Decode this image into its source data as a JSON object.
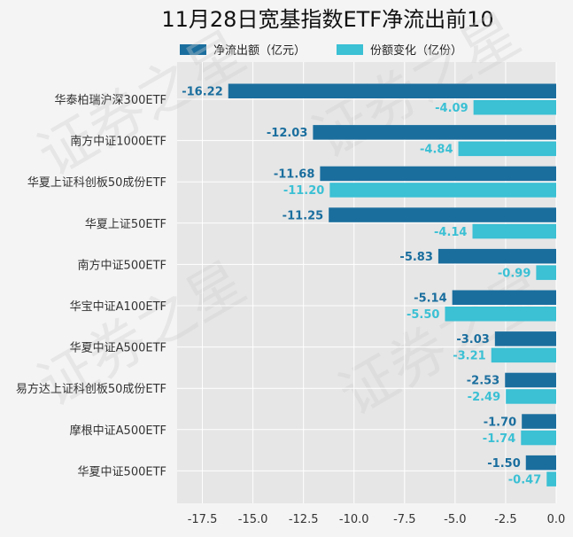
{
  "chart_data": {
    "type": "bar",
    "orientation": "horizontal",
    "title": "11月28日宽基指数ETF净流出前10",
    "categories": [
      "华泰柏瑞沪深300ETF",
      "南方中证1000ETF",
      "华夏上证科创板50成份ETF",
      "华夏上证50ETF",
      "南方中证500ETF",
      "华宝中证A100ETF",
      "华夏中证A500ETF",
      "易方达上证科创板50成份ETF",
      "摩根中证A500ETF",
      "华夏中证500ETF"
    ],
    "series": [
      {
        "name": "净流出额（亿元）",
        "color": "#1a6e9e",
        "values": [
          -16.22,
          -12.03,
          -11.68,
          -11.25,
          -5.83,
          -5.14,
          -3.03,
          -2.53,
          -1.7,
          -1.5
        ],
        "labels": [
          "-16.22",
          "-12.03",
          "-11.68",
          "-11.25",
          "-5.83",
          "-5.14",
          "-3.03",
          "-2.53",
          "-1.70",
          "-1.50"
        ]
      },
      {
        "name": "份额变化（亿份）",
        "color": "#3bc0d4",
        "values": [
          -4.09,
          -4.84,
          -11.2,
          -4.14,
          -0.99,
          -5.5,
          -3.21,
          -2.49,
          -1.74,
          -0.47
        ],
        "labels": [
          "-4.09",
          "-4.84",
          "-11.20",
          "-4.14",
          "-0.99",
          "-5.50",
          "-3.21",
          "-2.49",
          "-1.74",
          "-0.47"
        ]
      }
    ],
    "xlim": [
      -18.75,
      0
    ],
    "xticks": [
      -17.5,
      -15.0,
      -12.5,
      -10.0,
      -7.5,
      -5.0,
      -2.5,
      0.0
    ],
    "xtick_labels": [
      "-17.5",
      "-15.0",
      "-12.5",
      "-10.0",
      "-7.5",
      "-5.0",
      "-2.5",
      "0.0"
    ],
    "grid": true,
    "legend_position": "top-center",
    "watermark": [
      "证券之星",
      "证券之星",
      "证券之星",
      "证券之星"
    ]
  }
}
